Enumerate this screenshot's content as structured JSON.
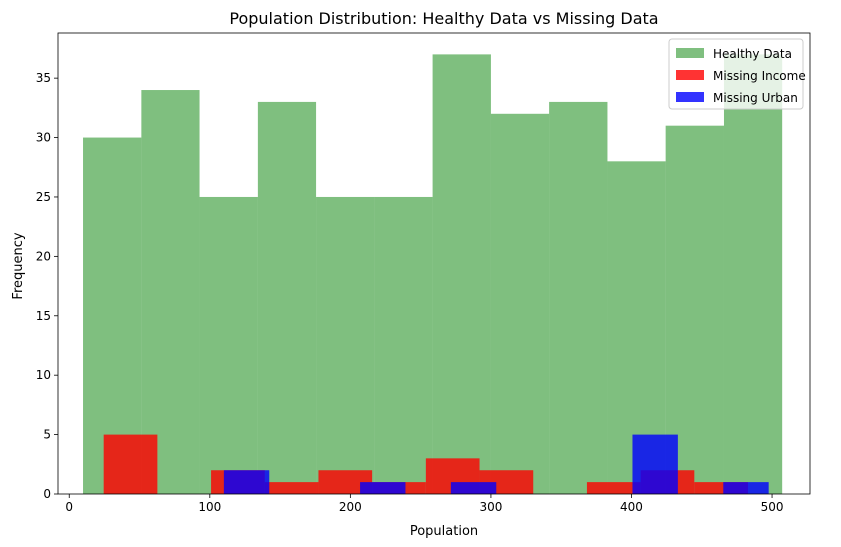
{
  "chart_data": {
    "type": "histogram",
    "title": "Population Distribution: Healthy Data vs Missing Data",
    "xlabel": "Population",
    "ylabel": "Frequency",
    "xlim": [
      -8,
      527
    ],
    "ylim": [
      0,
      38.8
    ],
    "xticks": [
      0,
      100,
      200,
      300,
      400,
      500
    ],
    "yticks": [
      0,
      5,
      10,
      15,
      20,
      25,
      30,
      35
    ],
    "legend_position": "upper right",
    "grid": false,
    "series": [
      {
        "name": "Healthy Data",
        "color": "#008000",
        "alpha": 0.5,
        "bin_edges": [
          9.8,
          51.3,
          92.7,
          134.2,
          175.6,
          217.1,
          258.5,
          300.0,
          341.4,
          382.9,
          424.3,
          465.8,
          507.2
        ],
        "counts": [
          30,
          34,
          25,
          33,
          25,
          25,
          37,
          32,
          33,
          28,
          31,
          37
        ]
      },
      {
        "name": "Missing Income",
        "color": "#ff0000",
        "alpha": 0.8,
        "bin_edges": [
          24.5,
          62.7,
          100.9,
          139.1,
          177.3,
          215.5,
          253.7,
          291.9,
          330.1,
          368.3,
          406.5,
          444.7,
          482.9
        ],
        "counts": [
          5,
          0,
          2,
          1,
          2,
          1,
          3,
          2,
          0,
          1,
          2,
          1
        ]
      },
      {
        "name": "Missing Urban",
        "color": "#0000ff",
        "alpha": 0.8,
        "bin_edges": [
          110.0,
          142.3,
          174.6,
          206.9,
          239.2,
          271.5,
          303.8,
          336.1,
          368.4,
          400.7,
          433.0,
          465.3,
          497.6
        ],
        "counts": [
          2,
          0,
          0,
          1,
          0,
          1,
          0,
          0,
          0,
          5,
          0,
          1
        ]
      }
    ]
  }
}
